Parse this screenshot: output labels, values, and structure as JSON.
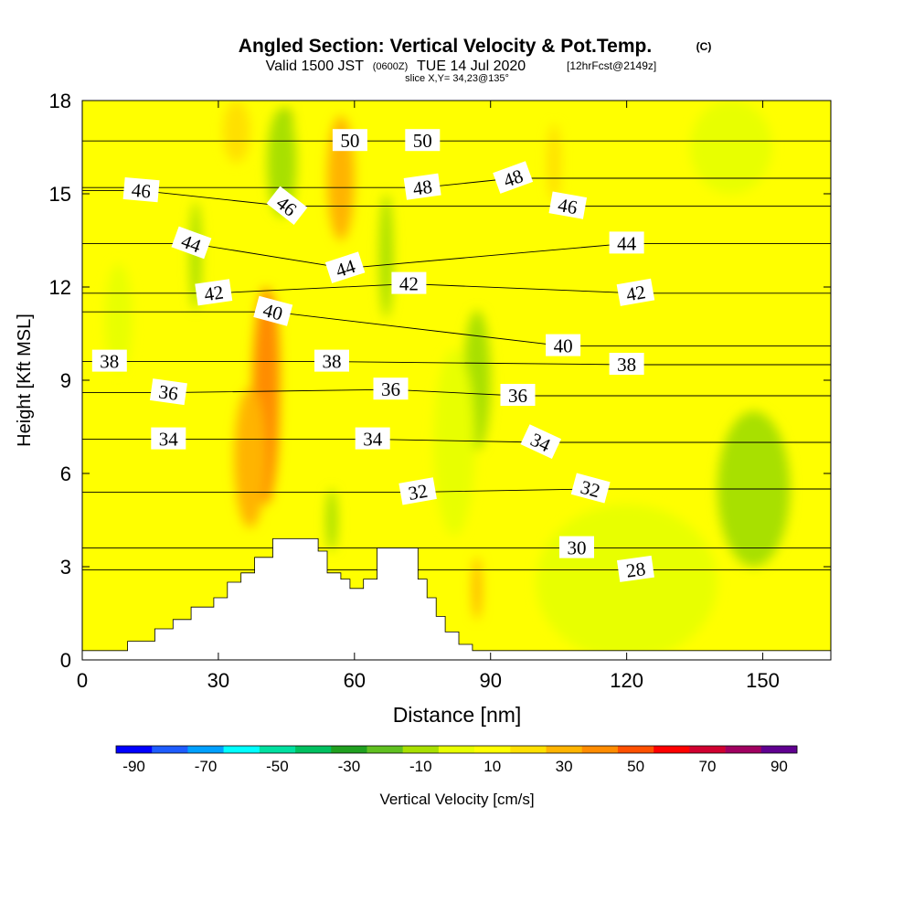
{
  "title": {
    "main": "Angled Section: Vertical Velocity & Pot.Temp.",
    "copyright": "(C)",
    "valid_prefix": "Valid 1500 JST",
    "valid_utc": "(0600Z)",
    "valid_date": "TUE 14 Jul 2020",
    "forecast": "[12hrFcst@2149z]",
    "slice": "slice X,Y= 34,23@135°"
  },
  "colorbar": {
    "label": "Vertical Velocity [cm/s]",
    "tick_labels": [
      "-90",
      "-70",
      "-50",
      "-30",
      "-10",
      "10",
      "30",
      "50",
      "70",
      "90"
    ],
    "colors": [
      "#0000ff",
      "#1e5cff",
      "#00a0ff",
      "#00ffff",
      "#00e0a0",
      "#00c060",
      "#20a020",
      "#60c020",
      "#a8e000",
      "#e8ff00",
      "#ffff00",
      "#ffe000",
      "#ffb400",
      "#ff8c00",
      "#ff5000",
      "#ff0000",
      "#d00030",
      "#a00060",
      "#600090"
    ]
  },
  "chart_data": {
    "type": "heatmap",
    "xlabel": "Distance [nm]",
    "ylabel": "Height [Kft MSL]",
    "xlim": [
      0,
      165
    ],
    "ylim": [
      0,
      18
    ],
    "x_ticks": [
      0,
      30,
      60,
      90,
      120,
      150
    ],
    "y_ticks": [
      0,
      3,
      6,
      9,
      12,
      15,
      18
    ],
    "fill_variable": "Vertical Velocity [cm/s]",
    "contour_variable": "Potential Temperature [C]",
    "background_color": "#ffff00",
    "features": [
      {
        "x": 41.5,
        "y": 9.5,
        "w": 2.5,
        "h": 4.0,
        "value": 75
      },
      {
        "x": 41.5,
        "y": 9.0,
        "w": 4.0,
        "h": 5.5,
        "value": 55
      },
      {
        "x": 40.5,
        "y": 8.5,
        "w": 6.0,
        "h": 7.0,
        "value": 35
      },
      {
        "x": 37.0,
        "y": 6.5,
        "w": 7.0,
        "h": 4.5,
        "value": 30
      },
      {
        "x": 45.0,
        "y": 16.5,
        "w": 3.5,
        "h": 2.5,
        "value": -35
      },
      {
        "x": 44.0,
        "y": 16.0,
        "w": 6.5,
        "h": 3.5,
        "value": -15
      },
      {
        "x": 87.0,
        "y": 9.5,
        "w": 2.5,
        "h": 1.8,
        "value": -30
      },
      {
        "x": 87.0,
        "y": 9.0,
        "w": 6.0,
        "h": 4.5,
        "value": -15
      },
      {
        "x": 82.0,
        "y": 7.0,
        "w": 9.0,
        "h": 6.0,
        "value": -5
      },
      {
        "x": 148.0,
        "y": 5.0,
        "w": 8.0,
        "h": 3.0,
        "value": -25
      },
      {
        "x": 148.0,
        "y": 5.5,
        "w": 16.0,
        "h": 5.0,
        "value": -10
      },
      {
        "x": 120.0,
        "y": 2.5,
        "w": 40.0,
        "h": 5.0,
        "value": -5
      },
      {
        "x": 143.0,
        "y": 16.5,
        "w": 18.0,
        "h": 3.0,
        "value": -5
      },
      {
        "x": 57.0,
        "y": 15.5,
        "w": 6.0,
        "h": 4.0,
        "value": 25
      },
      {
        "x": 34.0,
        "y": 17.0,
        "w": 6.0,
        "h": 2.0,
        "value": 22
      },
      {
        "x": 25.0,
        "y": 13.0,
        "w": 2.5,
        "h": 3.5,
        "value": -10
      },
      {
        "x": 8.0,
        "y": 11.0,
        "w": 6.0,
        "h": 3.5,
        "value": -5
      },
      {
        "x": 67.0,
        "y": 13.0,
        "w": 3.0,
        "h": 4.0,
        "value": -10
      },
      {
        "x": 87.0,
        "y": 2.3,
        "w": 2.0,
        "h": 2.0,
        "value": 30
      },
      {
        "x": 55.0,
        "y": 4.5,
        "w": 2.5,
        "h": 2.0,
        "value": -10
      },
      {
        "x": 104.0,
        "y": 16.0,
        "w": 3.0,
        "h": 2.5,
        "value": 15
      }
    ],
    "terrain": [
      [
        0,
        0.3
      ],
      [
        10,
        0.3
      ],
      [
        10,
        0.6
      ],
      [
        16,
        0.6
      ],
      [
        16,
        1.0
      ],
      [
        20,
        1.0
      ],
      [
        20,
        1.3
      ],
      [
        24,
        1.3
      ],
      [
        24,
        1.7
      ],
      [
        29,
        1.7
      ],
      [
        29,
        2.0
      ],
      [
        32,
        2.0
      ],
      [
        32,
        2.5
      ],
      [
        35,
        2.5
      ],
      [
        35,
        2.8
      ],
      [
        38,
        2.8
      ],
      [
        38,
        3.3
      ],
      [
        42,
        3.3
      ],
      [
        42,
        3.9
      ],
      [
        52,
        3.9
      ],
      [
        52,
        3.5
      ],
      [
        54,
        3.5
      ],
      [
        54,
        2.8
      ],
      [
        57,
        2.8
      ],
      [
        57,
        2.6
      ],
      [
        59,
        2.6
      ],
      [
        59,
        2.3
      ],
      [
        62,
        2.3
      ],
      [
        62,
        2.6
      ],
      [
        65,
        2.6
      ],
      [
        65,
        3.6
      ],
      [
        74,
        3.6
      ],
      [
        74,
        2.6
      ],
      [
        76,
        2.6
      ],
      [
        76,
        2.0
      ],
      [
        78,
        2.0
      ],
      [
        78,
        1.4
      ],
      [
        80,
        1.4
      ],
      [
        80,
        0.9
      ],
      [
        83,
        0.9
      ],
      [
        83,
        0.5
      ],
      [
        86,
        0.5
      ],
      [
        86,
        0.3
      ],
      [
        165,
        0.3
      ]
    ],
    "isentropes": [
      {
        "value": 28,
        "label_x": 122,
        "label_y": 2.9,
        "label_angle": -8
      },
      {
        "value": 30,
        "label_x": 109,
        "label_y": 3.6,
        "label_angle": 0
      },
      {
        "value": 32,
        "label_x": 74,
        "label_y": 5.4,
        "label_angle": -10
      },
      {
        "value": 32,
        "label_x": 112,
        "label_y": 5.5,
        "label_angle": 15
      },
      {
        "value": 34,
        "label_x": 19,
        "label_y": 7.1,
        "label_angle": 0
      },
      {
        "value": 34,
        "label_x": 64,
        "label_y": 7.1,
        "label_angle": 0
      },
      {
        "value": 34,
        "label_x": 101,
        "label_y": 7.0,
        "label_angle": 25
      },
      {
        "value": 36,
        "label_x": 19,
        "label_y": 8.6,
        "label_angle": 8
      },
      {
        "value": 36,
        "label_x": 68,
        "label_y": 8.7,
        "label_angle": 0
      },
      {
        "value": 36,
        "label_x": 96,
        "label_y": 8.5,
        "label_angle": 0
      },
      {
        "value": 38,
        "label_x": 6,
        "label_y": 9.6,
        "label_angle": 0
      },
      {
        "value": 38,
        "label_x": 55,
        "label_y": 9.6,
        "label_angle": 0
      },
      {
        "value": 38,
        "label_x": 120,
        "label_y": 9.5,
        "label_angle": 0
      },
      {
        "value": 40,
        "label_x": 42,
        "label_y": 11.2,
        "label_angle": 15
      },
      {
        "value": 40,
        "label_x": 106,
        "label_y": 10.1,
        "label_angle": 0
      },
      {
        "value": 42,
        "label_x": 29,
        "label_y": 11.8,
        "label_angle": -8
      },
      {
        "value": 42,
        "label_x": 72,
        "label_y": 12.1,
        "label_angle": 0
      },
      {
        "value": 42,
        "label_x": 122,
        "label_y": 11.8,
        "label_angle": -10
      },
      {
        "value": 44,
        "label_x": 24,
        "label_y": 13.4,
        "label_angle": 20
      },
      {
        "value": 44,
        "label_x": 58,
        "label_y": 12.6,
        "label_angle": -18
      },
      {
        "value": 44,
        "label_x": 120,
        "label_y": 13.4,
        "label_angle": 0
      },
      {
        "value": 46,
        "label_x": 13,
        "label_y": 15.1,
        "label_angle": 5
      },
      {
        "value": 46,
        "label_x": 45,
        "label_y": 14.6,
        "label_angle": 38
      },
      {
        "value": 46,
        "label_x": 107,
        "label_y": 14.6,
        "label_angle": 10
      },
      {
        "value": 48,
        "label_x": 75,
        "label_y": 15.2,
        "label_angle": -8
      },
      {
        "value": 48,
        "label_x": 95,
        "label_y": 15.5,
        "label_angle": -20
      },
      {
        "value": 50,
        "label_x": 59,
        "label_y": 16.7,
        "label_angle": 0
      },
      {
        "value": 50,
        "label_x": 75,
        "label_y": 16.7,
        "label_angle": 0
      }
    ]
  }
}
